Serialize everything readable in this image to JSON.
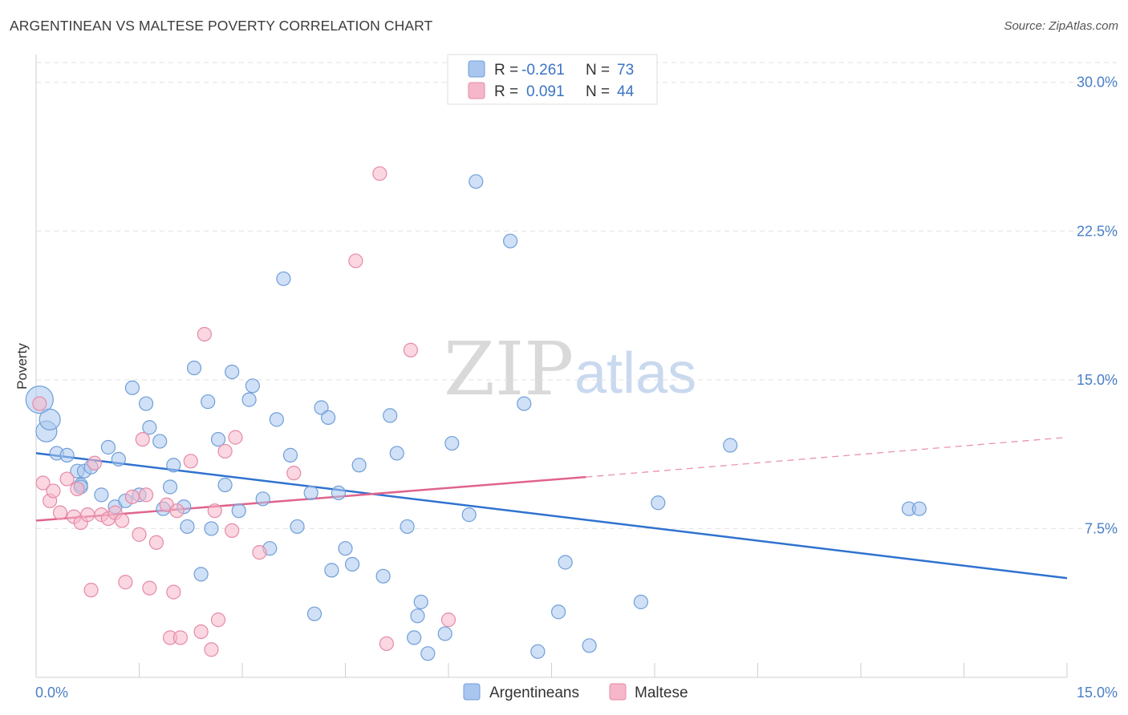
{
  "header": {
    "title": "ARGENTINEAN VS MALTESE POVERTY CORRELATION CHART",
    "source": "Source: ZipAtlas.com"
  },
  "watermark": {
    "zip": "ZIP",
    "atlas": "atlas"
  },
  "legend_top": {
    "rows": [
      {
        "r_label": "R =",
        "r_value": "-0.261",
        "n_label": "N =",
        "n_value": "73",
        "color": "#a9c6ef"
      },
      {
        "r_label": "R =",
        "r_value": "0.091",
        "n_label": "N =",
        "n_value": "44",
        "color": "#f5b7c9"
      }
    ]
  },
  "legend_bottom": {
    "items": [
      {
        "label": "Argentineans",
        "color": "#a9c6ef"
      },
      {
        "label": "Maltese",
        "color": "#f5b7c9"
      }
    ]
  },
  "chart_data": {
    "type": "scatter",
    "title": "ARGENTINEAN VS MALTESE POVERTY CORRELATION CHART",
    "ylabel": "Poverty",
    "xlabel": "",
    "xlim": [
      0,
      15
    ],
    "ylim": [
      0,
      31
    ],
    "x_tick_labels": [
      {
        "value": 0,
        "label": "0.0%"
      },
      {
        "value": 15,
        "label": "15.0%"
      }
    ],
    "y_tick_labels": [
      {
        "value": 7.5,
        "label": "7.5%"
      },
      {
        "value": 15,
        "label": "15.0%"
      },
      {
        "value": 22.5,
        "label": "22.5%"
      },
      {
        "value": 30,
        "label": "30.0%"
      }
    ],
    "grid": "horizontal-dashed",
    "legend_placement": "top-center",
    "series": [
      {
        "name": "Argentineans",
        "color": "#a9c6ef",
        "stroke": "#6f9fd8",
        "trend": {
          "x": [
            0,
            15
          ],
          "y": [
            11.3,
            5.0
          ],
          "color": "#2f72d0",
          "extended": false
        },
        "points": [
          [
            0.05,
            14.0
          ],
          [
            0.15,
            12.4
          ],
          [
            0.2,
            13.0
          ],
          [
            0.3,
            11.3
          ],
          [
            0.45,
            11.2
          ],
          [
            0.6,
            10.4
          ],
          [
            0.7,
            10.4
          ],
          [
            0.65,
            9.7
          ],
          [
            0.8,
            10.6
          ],
          [
            0.65,
            9.6
          ],
          [
            0.95,
            9.2
          ],
          [
            1.05,
            11.6
          ],
          [
            1.2,
            11.0
          ],
          [
            1.15,
            8.6
          ],
          [
            1.3,
            8.9
          ],
          [
            1.5,
            9.2
          ],
          [
            1.4,
            14.6
          ],
          [
            1.6,
            13.8
          ],
          [
            1.65,
            12.6
          ],
          [
            1.8,
            11.9
          ],
          [
            1.95,
            9.6
          ],
          [
            2.0,
            10.7
          ],
          [
            1.85,
            8.5
          ],
          [
            2.15,
            8.6
          ],
          [
            2.2,
            7.6
          ],
          [
            2.3,
            15.6
          ],
          [
            2.4,
            5.2
          ],
          [
            2.5,
            13.9
          ],
          [
            2.55,
            7.5
          ],
          [
            2.65,
            12.0
          ],
          [
            2.75,
            9.7
          ],
          [
            2.85,
            15.4
          ],
          [
            2.95,
            8.4
          ],
          [
            3.1,
            14.0
          ],
          [
            3.15,
            14.7
          ],
          [
            3.3,
            9.0
          ],
          [
            3.4,
            6.5
          ],
          [
            3.5,
            13.0
          ],
          [
            3.6,
            20.1
          ],
          [
            3.7,
            11.2
          ],
          [
            3.8,
            7.6
          ],
          [
            4.0,
            9.3
          ],
          [
            4.05,
            3.2
          ],
          [
            4.15,
            13.6
          ],
          [
            4.25,
            13.1
          ],
          [
            4.3,
            5.4
          ],
          [
            4.4,
            9.3
          ],
          [
            4.5,
            6.5
          ],
          [
            4.6,
            5.7
          ],
          [
            4.7,
            10.7
          ],
          [
            5.05,
            5.1
          ],
          [
            5.15,
            13.2
          ],
          [
            5.25,
            11.3
          ],
          [
            5.4,
            7.6
          ],
          [
            5.5,
            2.0
          ],
          [
            5.6,
            3.8
          ],
          [
            5.55,
            3.1
          ],
          [
            5.7,
            1.2
          ],
          [
            5.95,
            2.2
          ],
          [
            6.4,
            25.0
          ],
          [
            6.05,
            11.8
          ],
          [
            6.3,
            8.2
          ],
          [
            6.9,
            22.0
          ],
          [
            7.1,
            13.8
          ],
          [
            7.3,
            1.3
          ],
          [
            7.6,
            3.3
          ],
          [
            7.7,
            5.8
          ],
          [
            8.05,
            1.6
          ],
          [
            8.8,
            3.8
          ],
          [
            9.05,
            8.8
          ],
          [
            10.1,
            11.7
          ],
          [
            12.7,
            8.5
          ],
          [
            12.85,
            8.5
          ]
        ]
      },
      {
        "name": "Maltese",
        "color": "#f5b7c9",
        "stroke": "#e68aa8",
        "trend": {
          "x": [
            0,
            8.0
          ],
          "y": [
            7.9,
            10.1
          ],
          "dashed_to": [
            15,
            12.1
          ],
          "color": "#e0648c",
          "extended": true
        },
        "points": [
          [
            0.05,
            13.8
          ],
          [
            0.1,
            9.8
          ],
          [
            0.2,
            8.9
          ],
          [
            0.25,
            9.4
          ],
          [
            0.35,
            8.3
          ],
          [
            0.45,
            10.0
          ],
          [
            0.55,
            8.1
          ],
          [
            0.6,
            9.5
          ],
          [
            0.65,
            7.8
          ],
          [
            0.75,
            8.2
          ],
          [
            0.8,
            4.4
          ],
          [
            0.85,
            10.8
          ],
          [
            0.95,
            8.2
          ],
          [
            1.05,
            8.0
          ],
          [
            1.15,
            8.3
          ],
          [
            1.25,
            7.9
          ],
          [
            1.3,
            4.8
          ],
          [
            1.4,
            9.1
          ],
          [
            1.5,
            7.2
          ],
          [
            1.55,
            12.0
          ],
          [
            1.6,
            9.2
          ],
          [
            1.65,
            4.5
          ],
          [
            1.75,
            6.8
          ],
          [
            1.9,
            8.7
          ],
          [
            1.95,
            2.0
          ],
          [
            2.0,
            4.3
          ],
          [
            2.05,
            8.4
          ],
          [
            2.1,
            2.0
          ],
          [
            2.25,
            10.9
          ],
          [
            2.45,
            17.3
          ],
          [
            2.4,
            2.3
          ],
          [
            2.55,
            1.4
          ],
          [
            2.6,
            8.4
          ],
          [
            2.65,
            2.9
          ],
          [
            2.75,
            11.4
          ],
          [
            2.85,
            7.4
          ],
          [
            2.9,
            12.1
          ],
          [
            3.25,
            6.3
          ],
          [
            3.75,
            10.3
          ],
          [
            4.65,
            21.0
          ],
          [
            5.0,
            25.4
          ],
          [
            5.1,
            1.7
          ],
          [
            5.45,
            16.5
          ],
          [
            6.0,
            2.9
          ]
        ]
      }
    ]
  }
}
